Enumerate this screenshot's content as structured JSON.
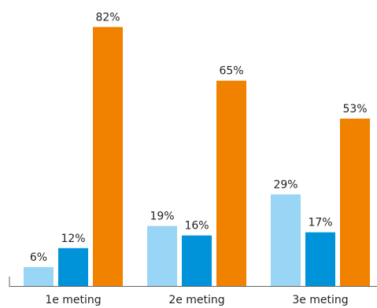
{
  "chart_data": {
    "type": "bar",
    "title": "",
    "xlabel": "",
    "ylabel": "",
    "categories": [
      "1e meting",
      "2e meting",
      "3e meting"
    ],
    "series": [
      {
        "values": [
          6,
          19,
          29
        ],
        "labels": [
          "6%",
          "19%",
          "29%"
        ],
        "color": "#99d5f4"
      },
      {
        "values": [
          12,
          16,
          17
        ],
        "labels": [
          "12%",
          "16%",
          "17%"
        ],
        "color": "#0093d9"
      },
      {
        "values": [
          82,
          65,
          53
        ],
        "labels": [
          "82%",
          "65%",
          "53%"
        ],
        "color": "#f08200"
      }
    ],
    "ylim": [
      0,
      100
    ],
    "grid": false,
    "legend": "none"
  }
}
